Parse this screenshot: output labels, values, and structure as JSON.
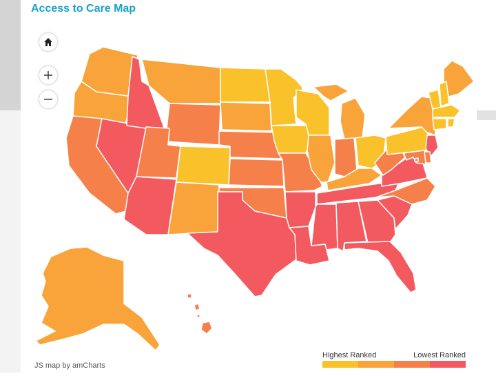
{
  "title": "Access to Care Map",
  "attribution": "JS map by amCharts",
  "controls": {
    "home_icon": "home-icon",
    "zoom_in_icon": "plus-icon",
    "zoom_out_icon": "minus-icon"
  },
  "legend": {
    "low_label": "Highest Ranked",
    "high_label": "Lowest Ranked",
    "colors": [
      "#f9c22b",
      "#f9a43b",
      "#f6804a",
      "#f25a60"
    ]
  },
  "color_scale": {
    "tier1": "#f9c22b",
    "tier2": "#f9a43b",
    "tier3": "#f6804a",
    "tier4": "#f25a60"
  },
  "states": {
    "WA": 2,
    "OR": 2,
    "CA": 3,
    "NV": 4,
    "ID": 4,
    "MT": 2,
    "WY": 3,
    "UT": 3,
    "AZ": 4,
    "CO": 1,
    "NM": 2,
    "ND": 1,
    "SD": 2,
    "NE": 3,
    "KS": 3,
    "OK": 3,
    "TX": 4,
    "MN": 1,
    "IA": 1,
    "MO": 3,
    "AR": 4,
    "LA": 4,
    "WI": 1,
    "IL": 2,
    "MI": 2,
    "IN": 3,
    "OH": 1,
    "KY": 2,
    "TN": 4,
    "MS": 4,
    "AL": 4,
    "GA": 4,
    "FL": 4,
    "SC": 4,
    "NC": 3,
    "VA": 4,
    "WV": 3,
    "PA": 1,
    "NY": 2,
    "ME": 2,
    "VT": 1,
    "NH": 1,
    "MA": 1,
    "CT": 1,
    "RI": 1,
    "NJ": 4,
    "DE": 3,
    "MD": 3,
    "DC": 3,
    "AK": 2,
    "HI": 3
  }
}
